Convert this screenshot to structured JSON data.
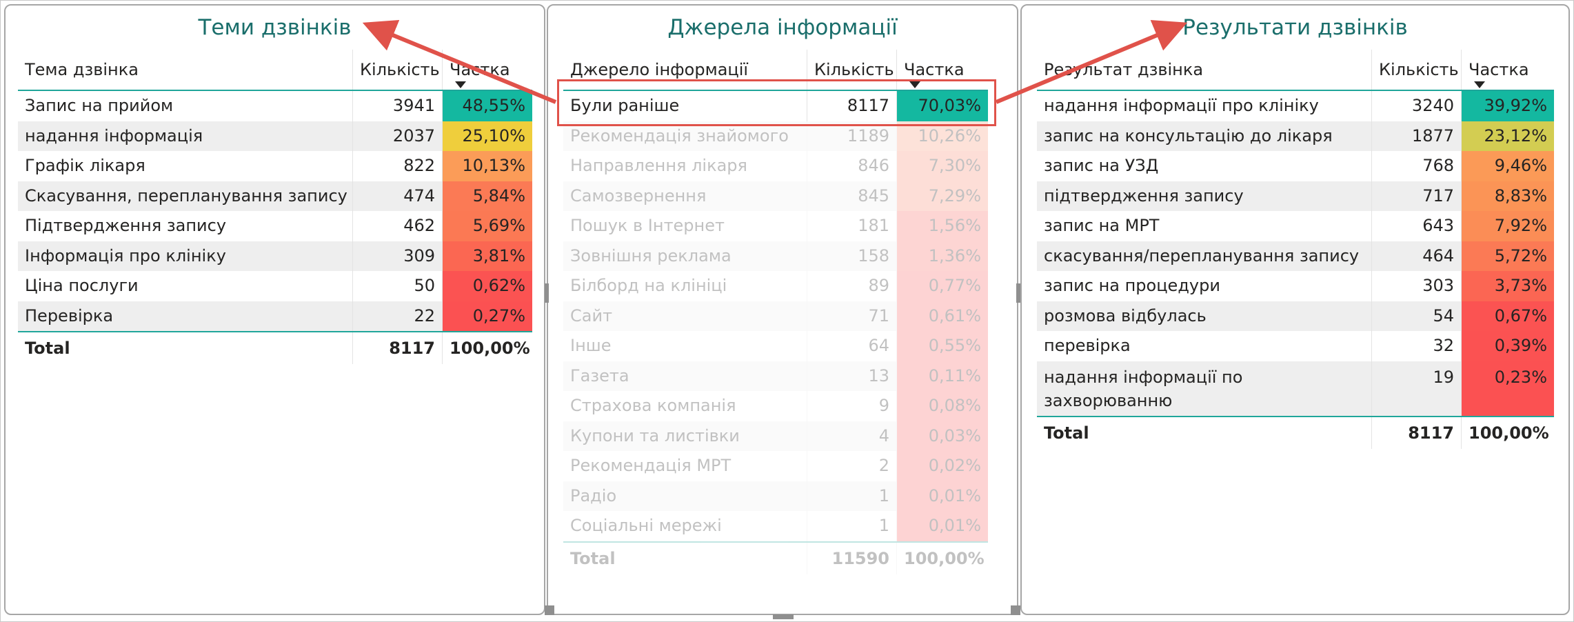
{
  "panels": [
    {
      "title": "Теми дзвінків",
      "columns": [
        "Тема дзвінка",
        "Кількість",
        "Частка"
      ],
      "rows": [
        {
          "label": "Запис на прийом",
          "count": "3941",
          "share": "48,55%",
          "color": "#14b8a0"
        },
        {
          "label": "надання інформація",
          "count": "2037",
          "share": "25,10%",
          "color": "#efce3c"
        },
        {
          "label": "Графік лікаря",
          "count": "822",
          "share": "10,13%",
          "color": "#fb9c58"
        },
        {
          "label": "Скасування, перепланування запису",
          "count": "474",
          "share": "5,84%",
          "color": "#fb7a55"
        },
        {
          "label": "Підтвердження запису",
          "count": "462",
          "share": "5,69%",
          "color": "#fb7954"
        },
        {
          "label": "Інформація про клініку",
          "count": "309",
          "share": "3,81%",
          "color": "#fb6752"
        },
        {
          "label": "Ціна послуги",
          "count": "50",
          "share": "0,62%",
          "color": "#fb5352"
        },
        {
          "label": "Перевірка",
          "count": "22",
          "share": "0,27%",
          "color": "#fb5152"
        }
      ],
      "total": {
        "label": "Total",
        "count": "8117",
        "share": "100,00%"
      }
    },
    {
      "title": "Джерела інформації",
      "columns": [
        "Джерело інформації",
        "Кількість",
        "Частка"
      ],
      "rows": [
        {
          "label": "Були раніше",
          "count": "8117",
          "share": "70,03%",
          "color": "#14b8a0"
        },
        {
          "label": "Рекомендація знайомого",
          "count": "1189",
          "share": "10,26%",
          "color": "#fb9a7a"
        },
        {
          "label": "Направлення лікаря",
          "count": "846",
          "share": "7,30%",
          "color": "#fb8a74"
        },
        {
          "label": "Самозвернення",
          "count": "845",
          "share": "7,29%",
          "color": "#fb8a74"
        },
        {
          "label": "Пошук в Інтернет",
          "count": "181",
          "share": "1,56%",
          "color": "#fb6a66"
        },
        {
          "label": "Зовнішня реклама",
          "count": "158",
          "share": "1,36%",
          "color": "#fb6a66"
        },
        {
          "label": "Білборд на клініці",
          "count": "89",
          "share": "0,77%",
          "color": "#fb6464"
        },
        {
          "label": "Сайт",
          "count": "71",
          "share": "0,61%",
          "color": "#fb6464"
        },
        {
          "label": "Інше",
          "count": "64",
          "share": "0,55%",
          "color": "#fb6464"
        },
        {
          "label": "Газета",
          "count": "13",
          "share": "0,11%",
          "color": "#fb6464"
        },
        {
          "label": "Страхова компанія",
          "count": "9",
          "share": "0,08%",
          "color": "#fb6464"
        },
        {
          "label": "Купони та листівки",
          "count": "4",
          "share": "0,03%",
          "color": "#fb6464"
        },
        {
          "label": "Рекомендація МРТ",
          "count": "2",
          "share": "0,02%",
          "color": "#fb6464"
        },
        {
          "label": "Радіо",
          "count": "1",
          "share": "0,01%",
          "color": "#fb6464"
        },
        {
          "label": "Соціальні мережі",
          "count": "1",
          "share": "0,01%",
          "color": "#fb6464"
        }
      ],
      "total": {
        "label": "Total",
        "count": "11590",
        "share": "100,00%"
      }
    },
    {
      "title": "Результати дзвінків",
      "columns": [
        "Результат дзвінка",
        "Кількість",
        "Частка"
      ],
      "rows": [
        {
          "label": "надання інформації про клініку",
          "count": "3240",
          "share": "39,92%",
          "color": "#14b8a0"
        },
        {
          "label": "запис на консультацію до лікаря",
          "count": "1877",
          "share": "23,12%",
          "color": "#d3cd52"
        },
        {
          "label": "запис на УЗД",
          "count": "768",
          "share": "9,46%",
          "color": "#fb9a57"
        },
        {
          "label": "підтвердження запису",
          "count": "717",
          "share": "8,83%",
          "color": "#fb9456"
        },
        {
          "label": "запис на МРТ",
          "count": "643",
          "share": "7,92%",
          "color": "#fb8d56"
        },
        {
          "label": "скасування/перепланування запису",
          "count": "464",
          "share": "5,72%",
          "color": "#fb7a55"
        },
        {
          "label": "запис на процедури",
          "count": "303",
          "share": "3,73%",
          "color": "#fb6653"
        },
        {
          "label": "розмова відбулась",
          "count": "54",
          "share": "0,67%",
          "color": "#fb5352"
        },
        {
          "label": "перевірка",
          "count": "32",
          "share": "0,39%",
          "color": "#fb5252"
        },
        {
          "label": "надання інформації по захворюванню",
          "count": "19",
          "share": "0,23%",
          "color": "#fb5152"
        }
      ],
      "total": {
        "label": "Total",
        "count": "8117",
        "share": "100,00%"
      }
    }
  ],
  "annotation_color": "#e0524a",
  "accent_color": "#1fa69a"
}
